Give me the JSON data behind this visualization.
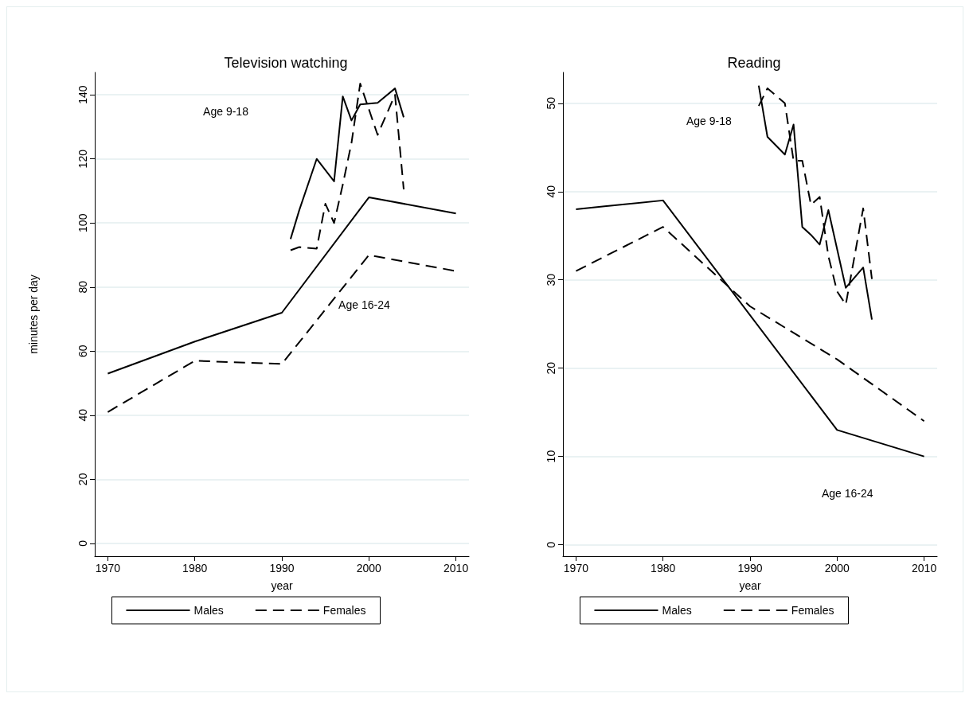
{
  "chart_data": [
    {
      "type": "line",
      "title": "Television watching",
      "xlabel": "year",
      "ylabel": "minutes per day",
      "xlim": [
        1968.5,
        2011.5
      ],
      "xticks": [
        1970,
        1980,
        1990,
        2000,
        2010
      ],
      "ylim": [
        -4,
        147
      ],
      "yticks": [
        0,
        20,
        40,
        60,
        80,
        100,
        120,
        140
      ],
      "grid": "y",
      "legend": "bottom",
      "marker": "none",
      "annotations": [
        "Age 9-18",
        "Age 16-24"
      ],
      "series": [
        {
          "name": "Males",
          "color": "#000000",
          "line_style": "solid",
          "x": [
            1970,
            1980,
            1990,
            2000,
            2010
          ],
          "values": [
            53,
            63,
            72,
            108,
            103
          ]
        },
        {
          "name": "Females",
          "color": "#000000",
          "line_style": "dashed",
          "x": [
            1970,
            1980,
            1990,
            2000,
            2010
          ],
          "values": [
            41,
            57,
            56,
            90,
            85
          ]
        },
        {
          "color": "#000000",
          "line_style": "solid",
          "x": [
            1991,
            1992,
            1994,
            1996,
            1997,
            1998,
            1999,
            2001,
            2003,
            2004
          ],
          "values": [
            95,
            104,
            120,
            113,
            139.5,
            132,
            137,
            137.5,
            142,
            133
          ]
        },
        {
          "color": "#000000",
          "line_style": "dashed",
          "x": [
            1991,
            1992,
            1994,
            1995,
            1996,
            1997,
            1998,
            1999,
            2001,
            2003,
            2004
          ],
          "values": [
            91.5,
            92.5,
            92,
            106,
            100,
            112,
            125,
            143.5,
            127.5,
            140,
            110.5
          ]
        }
      ]
    },
    {
      "type": "line",
      "title": "Reading",
      "xlabel": "year",
      "xlim": [
        1968.5,
        2011.5
      ],
      "xticks": [
        1970,
        1980,
        1990,
        2000,
        2010
      ],
      "ylim": [
        -1.3,
        53.5
      ],
      "yticks": [
        0,
        10,
        20,
        30,
        40,
        50
      ],
      "grid": "y",
      "legend": "bottom",
      "marker": "none",
      "annotations": [
        "Age 9-18",
        "Age 16-24"
      ],
      "series": [
        {
          "name": "Males",
          "color": "#000000",
          "line_style": "solid",
          "x": [
            1970,
            1980,
            2000,
            2010
          ],
          "values": [
            38,
            39,
            13,
            10
          ]
        },
        {
          "name": "Females",
          "color": "#000000",
          "line_style": "dashed",
          "x": [
            1970,
            1980,
            1990,
            2000,
            2010
          ],
          "values": [
            31,
            36,
            27,
            21,
            14
          ]
        },
        {
          "color": "#000000",
          "line_style": "solid",
          "x": [
            1991,
            1992,
            1994,
            1995,
            1996,
            1997,
            1998,
            1999,
            2001,
            2003,
            2004
          ],
          "values": [
            52,
            46.2,
            44.2,
            47.6,
            36,
            35.1,
            34,
            37.9,
            29.1,
            31.4,
            25.5
          ]
        },
        {
          "color": "#000000",
          "line_style": "dashed",
          "x": [
            1991,
            1992,
            1994,
            1995,
            1996,
            1997,
            1998,
            1999,
            2000,
            2001,
            2003,
            2004
          ],
          "values": [
            49.7,
            51.7,
            50,
            43.5,
            43.5,
            38.5,
            39.4,
            32.7,
            28.7,
            27.2,
            38.1,
            30.1
          ]
        }
      ]
    }
  ]
}
